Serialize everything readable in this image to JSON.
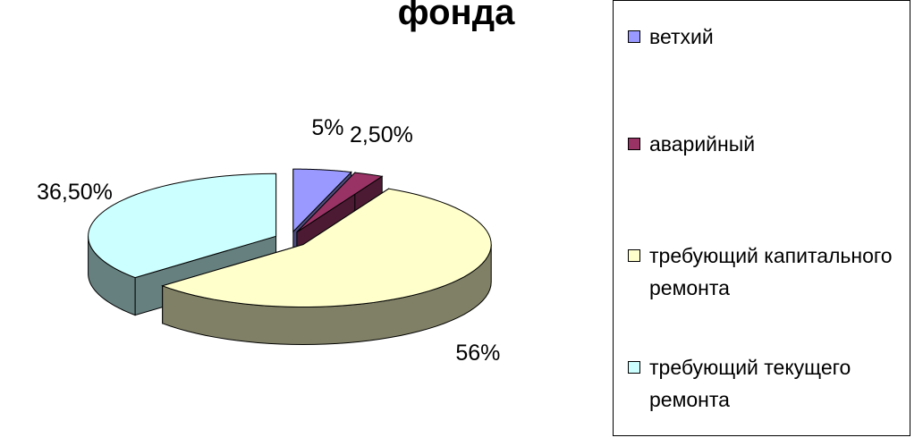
{
  "chart_data": {
    "type": "pie3d",
    "title": "фонда",
    "categories": [
      "ветхий",
      "аварийный",
      "требующий капитального ремонта",
      "требующий текущего ремонта"
    ],
    "values": [
      5,
      2.5,
      56,
      36.5
    ],
    "value_labels": [
      "5%",
      "2,50%",
      "56%",
      "36,50%"
    ],
    "colors": [
      "#9999ff",
      "#993366",
      "#ffffcc",
      "#ccffff"
    ],
    "legend": "right"
  }
}
